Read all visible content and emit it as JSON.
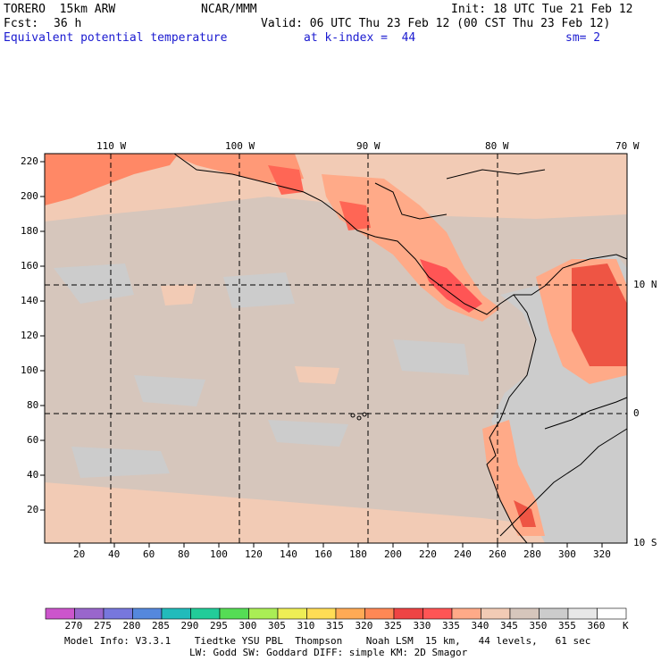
{
  "header": {
    "model": "TORERO  15km ARW",
    "org": "NCAR/MMM",
    "init": "Init: 18 UTC Tue 21 Feb 12",
    "fcst_label": "Fcst:",
    "fcst_value": "36 h",
    "valid": "Valid: 06 UTC Thu 23 Feb 12 (00 CST Thu 23 Feb 12)",
    "field": "Equivalent potential temperature",
    "level": "at k-index =  44",
    "smoothing": "sm= 2"
  },
  "map": {
    "top_lon_labels": [
      "110 W",
      "100 W",
      "90 W",
      "80 W",
      "70 W"
    ],
    "right_lat_labels": [
      "10 N",
      "0",
      "10 S"
    ],
    "left_y_ticks": [
      "220",
      "200",
      "180",
      "160",
      "140",
      "120",
      "100",
      "80",
      "60",
      "40",
      "20"
    ],
    "bottom_x_ticks": [
      "20",
      "40",
      "60",
      "80",
      "100",
      "120",
      "140",
      "160",
      "180",
      "200",
      "220",
      "240",
      "260",
      "280",
      "300",
      "320"
    ]
  },
  "colorbar": {
    "labels": [
      "270",
      "275",
      "280",
      "285",
      "290",
      "295",
      "300",
      "305",
      "310",
      "315",
      "320",
      "325",
      "330",
      "335",
      "340",
      "345",
      "350",
      "355",
      "360"
    ],
    "unit": "K",
    "colors": [
      "#cc55cc",
      "#9966cc",
      "#7777dd",
      "#5588dd",
      "#22bbbb",
      "#22cc99",
      "#55dd55",
      "#aaee55",
      "#eeee55",
      "#ffdd55",
      "#ffaa55",
      "#ff8855",
      "#ee4444",
      "#ff5555",
      "#ffaa88",
      "#f2cbb5",
      "#d6c6bc",
      "#cccccc",
      "#e8e8e8",
      "#ffffff"
    ]
  },
  "footer": {
    "line1": "Model Info: V3.3.1    Tiedtke YSU PBL  Thompson    Noah LSM  15 km,   44 levels,   61 sec",
    "line2": "LW: Godd SW: Goddard DIFF: simple KM: 2D Smagor"
  }
}
